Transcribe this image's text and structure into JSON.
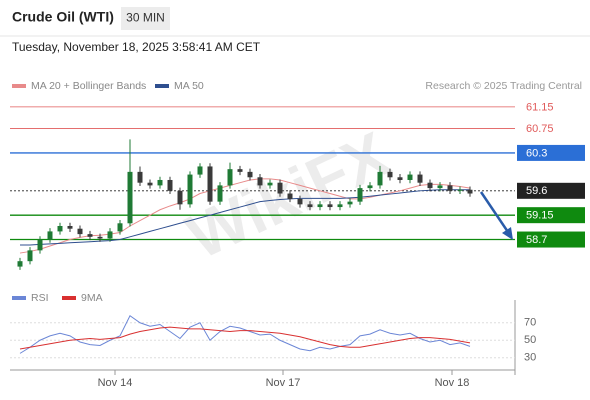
{
  "chart_data": [
    {
      "type": "candlestick",
      "title": "Crude Oil (WTI)",
      "timeframe": "30 MIN",
      "subtitle": "Tuesday, November 18, 2025 3:58:41 AM CET",
      "credit": "Research © 2025 Trading Central",
      "watermark": "WikiFX",
      "xlim": [
        -1,
        49.5
      ],
      "ylim": [
        57.86,
        61.37
      ],
      "up_color": "#1f7a35",
      "down_color": "#3a3a3a",
      "open": [
        58.2,
        58.3,
        58.5,
        58.7,
        58.85,
        58.95,
        58.9,
        58.8,
        58.75,
        58.72,
        58.85,
        59.0,
        59.95,
        59.75,
        59.7,
        59.8,
        59.6,
        59.35,
        59.9,
        60.05,
        59.4,
        59.7,
        60.0,
        59.95,
        59.85,
        59.7,
        59.75,
        59.55,
        59.45,
        59.35,
        59.3,
        59.35,
        59.3,
        59.35,
        59.4,
        59.65,
        59.7,
        59.95,
        59.85,
        59.8,
        59.9,
        59.75,
        59.65,
        59.7,
        59.6,
        59.62
      ],
      "high": [
        58.36,
        58.56,
        58.76,
        58.91,
        59.01,
        59.01,
        58.96,
        58.86,
        58.81,
        58.91,
        59.06,
        60.55,
        60.05,
        59.81,
        59.86,
        59.86,
        59.66,
        59.96,
        60.11,
        60.11,
        59.76,
        60.12,
        60.06,
        60.01,
        59.91,
        59.81,
        59.81,
        59.61,
        59.51,
        59.41,
        59.41,
        59.41,
        59.41,
        59.46,
        59.71,
        59.76,
        60.06,
        60.01,
        59.91,
        59.96,
        59.96,
        59.81,
        59.76,
        59.76,
        59.68,
        59.68
      ],
      "low": [
        58.14,
        58.24,
        58.44,
        58.64,
        58.79,
        58.84,
        58.74,
        58.69,
        58.66,
        58.66,
        58.79,
        58.94,
        59.69,
        59.64,
        59.64,
        59.54,
        59.25,
        59.29,
        59.84,
        59.34,
        59.34,
        59.64,
        59.89,
        59.79,
        59.64,
        59.64,
        59.49,
        59.39,
        59.29,
        59.24,
        59.24,
        59.24,
        59.24,
        59.29,
        59.34,
        59.59,
        59.64,
        59.79,
        59.74,
        59.74,
        59.69,
        59.59,
        59.59,
        59.54,
        59.54,
        59.49
      ],
      "close": [
        58.3,
        58.5,
        58.7,
        58.85,
        58.95,
        58.9,
        58.8,
        58.75,
        58.72,
        58.85,
        59.0,
        59.95,
        59.75,
        59.7,
        59.8,
        59.6,
        59.35,
        59.9,
        60.05,
        59.4,
        59.7,
        60.0,
        59.95,
        59.85,
        59.7,
        59.75,
        59.55,
        59.45,
        59.35,
        59.3,
        59.35,
        59.3,
        59.35,
        59.4,
        59.65,
        59.7,
        59.95,
        59.85,
        59.8,
        59.9,
        59.75,
        59.65,
        59.7,
        59.6,
        59.62,
        59.55
      ],
      "series": [
        {
          "name": "MA 20 + Bollinger Bands",
          "color": "#e88a8a",
          "values": [
            58.45,
            58.48,
            58.52,
            58.58,
            58.64,
            58.7,
            58.74,
            58.77,
            58.78,
            58.8,
            58.83,
            58.95,
            59.05,
            59.15,
            59.25,
            59.32,
            59.38,
            59.45,
            59.55,
            59.6,
            59.65,
            59.7,
            59.75,
            59.8,
            59.82,
            59.82,
            59.8,
            59.75,
            59.7,
            59.65,
            59.6,
            59.55,
            59.5,
            59.45,
            59.45,
            59.48,
            59.52,
            59.56,
            59.6,
            59.65,
            59.7,
            59.72,
            59.72,
            59.7,
            59.68,
            59.65
          ]
        },
        {
          "name": "MA 50",
          "color": "#2f4f8f",
          "values": [
            58.6,
            58.6,
            58.61,
            58.62,
            58.63,
            58.64,
            58.65,
            58.66,
            58.67,
            58.68,
            58.7,
            58.75,
            58.8,
            58.85,
            58.9,
            58.95,
            59.0,
            59.05,
            59.1,
            59.15,
            59.2,
            59.25,
            59.3,
            59.35,
            59.4,
            59.42,
            59.44,
            59.45,
            59.46,
            59.46,
            59.46,
            59.46,
            59.46,
            59.47,
            59.48,
            59.5,
            59.52,
            59.54,
            59.56,
            59.58,
            59.6,
            59.61,
            59.62,
            59.62,
            59.62,
            59.62
          ]
        }
      ],
      "levels": [
        {
          "value": 61.15,
          "color": "#e05a5a",
          "boxed": false
        },
        {
          "value": 60.75,
          "color": "#e05a5a",
          "boxed": false
        },
        {
          "value": 60.3,
          "color": "#2b6fd6",
          "boxed": true
        },
        {
          "value": 59.6,
          "color": "#222222",
          "boxed": true,
          "dotted": true
        },
        {
          "value": 59.15,
          "color": "#0f8a0f",
          "boxed": true
        },
        {
          "value": 58.7,
          "color": "#0f8a0f",
          "boxed": true
        }
      ]
    },
    {
      "type": "line",
      "xlim": [
        -1,
        49.5
      ],
      "ylim": [
        16,
        96
      ],
      "yticks": [
        30,
        50,
        70
      ],
      "xticks": [
        {
          "value": 9.5,
          "label": "Nov 14"
        },
        {
          "value": 26.3,
          "label": "Nov 17"
        },
        {
          "value": 43.2,
          "label": "Nov 18"
        }
      ],
      "series": [
        {
          "name": "RSI",
          "color": "#6b86d6",
          "values": [
            35,
            42,
            50,
            55,
            58,
            55,
            48,
            45,
            44,
            50,
            55,
            78,
            70,
            66,
            68,
            60,
            52,
            65,
            70,
            50,
            60,
            66,
            64,
            60,
            56,
            57,
            50,
            45,
            40,
            38,
            42,
            40,
            43,
            45,
            55,
            57,
            62,
            58,
            56,
            58,
            52,
            48,
            50,
            45,
            47,
            43
          ]
        },
        {
          "name": "9MA",
          "color": "#d93030",
          "values": [
            40,
            42,
            44,
            46,
            48,
            50,
            51,
            52,
            51,
            52,
            53,
            57,
            60,
            62,
            64,
            65,
            64,
            63,
            63,
            62,
            61,
            60,
            61,
            61,
            60,
            59,
            58,
            56,
            54,
            51,
            48,
            45,
            43,
            42,
            42,
            44,
            46,
            48,
            50,
            52,
            53,
            53,
            52,
            51,
            49,
            47
          ]
        }
      ]
    }
  ]
}
